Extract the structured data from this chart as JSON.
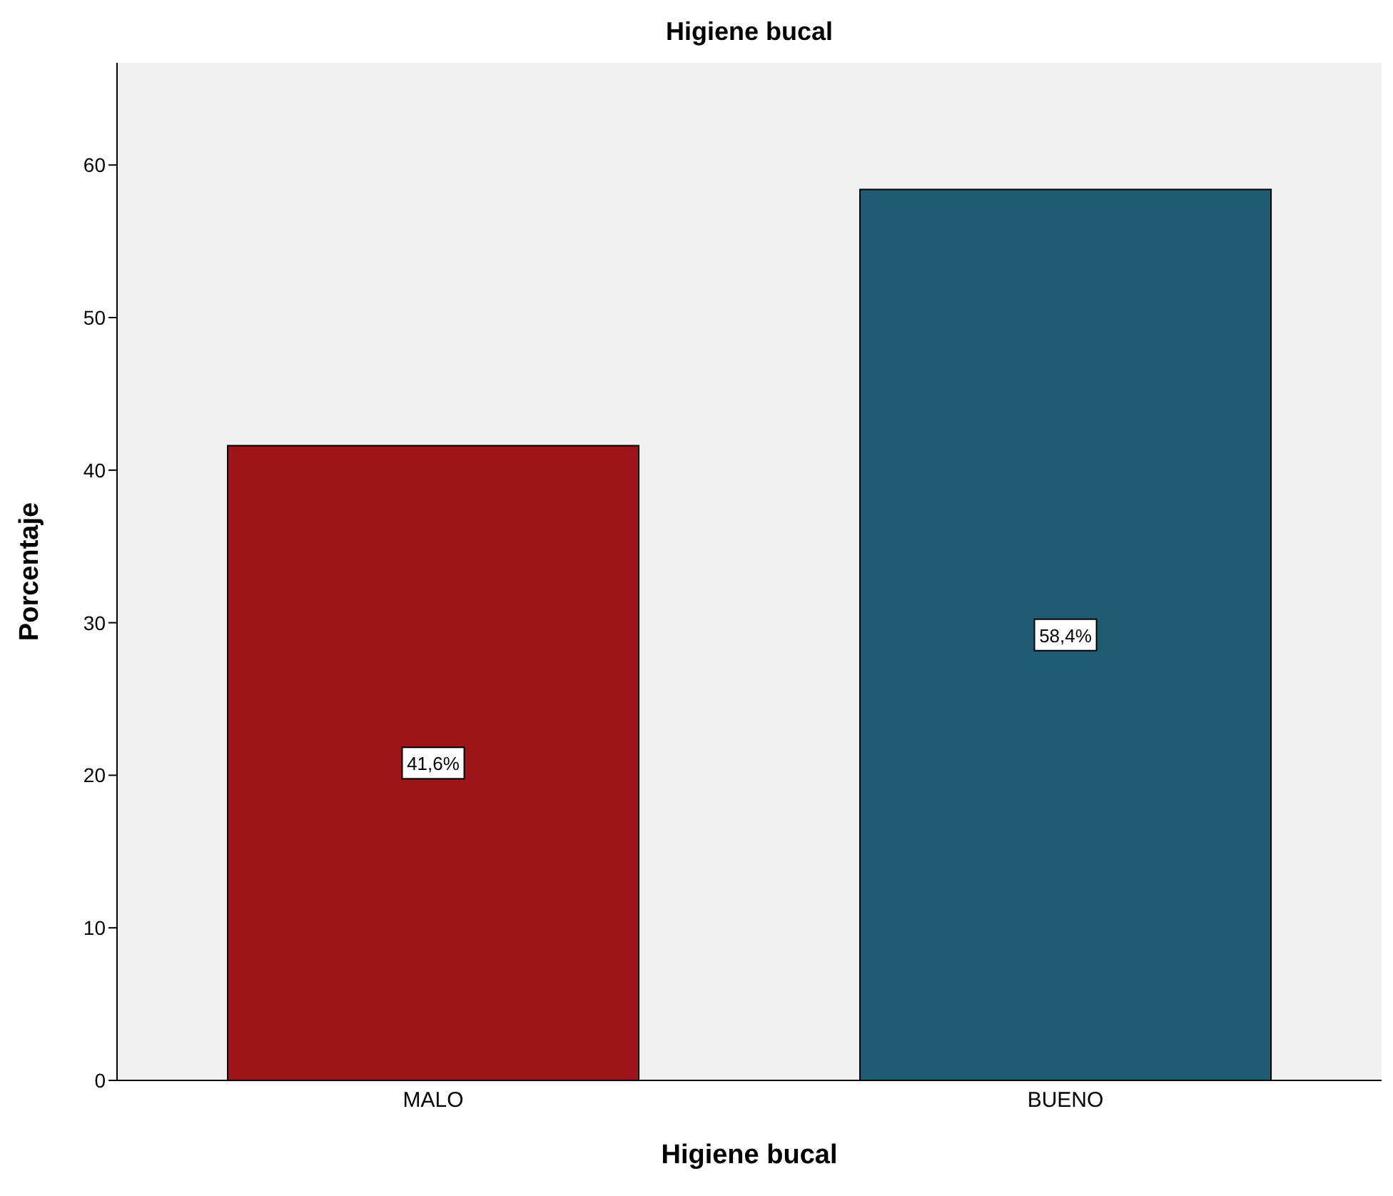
{
  "chart_data": {
    "type": "bar",
    "title": "Higiene bucal",
    "xlabel": "Higiene bucal",
    "ylabel": "Porcentaje",
    "categories": [
      "MALO",
      "BUENO"
    ],
    "values": [
      41.6,
      58.4
    ],
    "colors": [
      "#9e1519",
      "#1f5c73"
    ],
    "value_labels": [
      "41,6%",
      "58,4%"
    ],
    "ylim": [
      0,
      66.7
    ],
    "yticks": [
      0,
      10,
      20,
      30,
      40,
      50,
      60
    ],
    "grid": false
  }
}
